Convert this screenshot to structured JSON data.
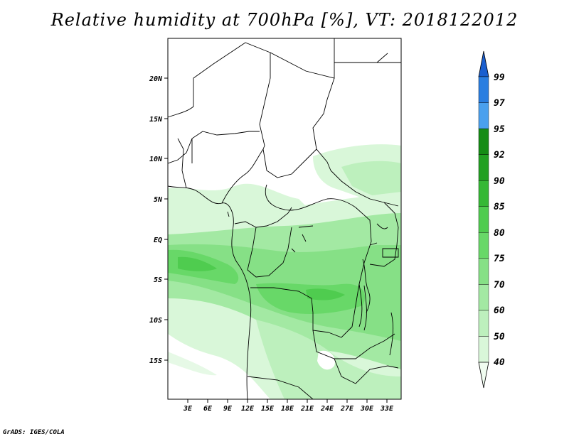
{
  "title": "Relative humidity at 700hPa [%], VT: 2018122012",
  "credit": "GrADS: IGES/COLA",
  "map": {
    "lon_range": [
      0,
      35
    ],
    "lat_range": [
      -20,
      25
    ],
    "lat_ticks": [
      "20N",
      "15N",
      "10N",
      "5N",
      "EQ",
      "5S",
      "10S",
      "15S"
    ],
    "lon_ticks": [
      "3E",
      "6E",
      "9E",
      "12E",
      "15E",
      "18E",
      "21E",
      "24E",
      "27E",
      "30E",
      "33E"
    ]
  },
  "colorbar": {
    "labels": [
      "40",
      "50",
      "60",
      "70",
      "75",
      "80",
      "85",
      "90",
      "92",
      "95",
      "97",
      "99"
    ],
    "colors": [
      "#f0fcf0",
      "#d9f7d9",
      "#bdf0bd",
      "#a3e9a3",
      "#86e086",
      "#68d868",
      "#4fcc4f",
      "#35b835",
      "#22a022",
      "#158c15",
      "#4aa0ee",
      "#2a7ee0",
      "#1a5fcf"
    ]
  }
}
